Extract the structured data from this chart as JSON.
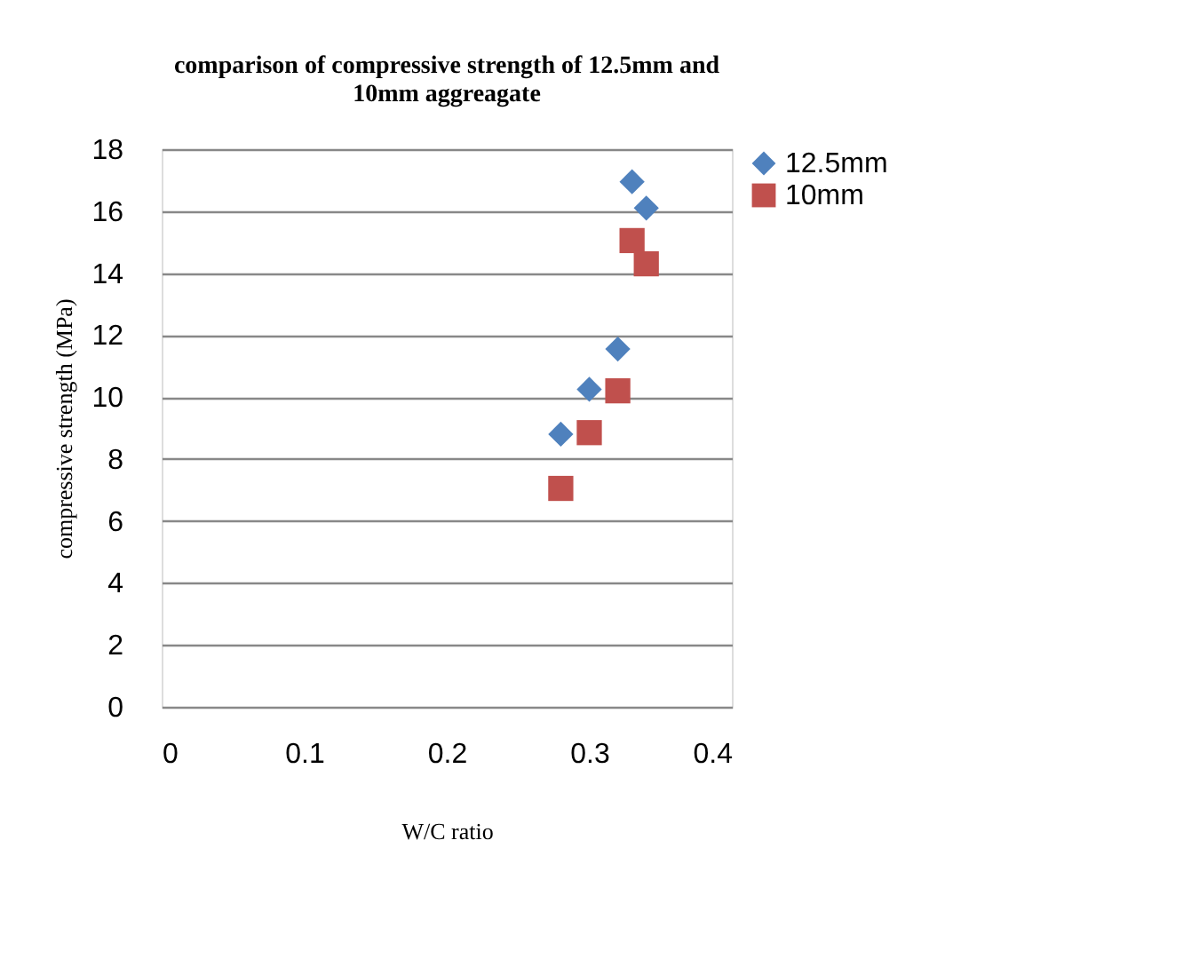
{
  "chart_data": {
    "type": "scatter",
    "title": "comparison of compressive strength of 12.5mm and\n10mm aggreagate",
    "xlabel": "W/C ratio",
    "ylabel": "compressive strength (MPa)",
    "series": [
      {
        "name": "12.5mm",
        "color": "#4f81bd",
        "marker": "diamond",
        "x": [
          0.28,
          0.3,
          0.32,
          0.33,
          0.34
        ],
        "values": [
          8.8,
          10.25,
          11.55,
          16.95,
          16.1
        ]
      },
      {
        "name": "10mm",
        "color": "#c0504d",
        "marker": "square",
        "x": [
          0.28,
          0.3,
          0.32,
          0.33,
          0.34
        ],
        "values": [
          7.05,
          8.85,
          10.2,
          15.05,
          14.3
        ]
      }
    ],
    "xlim": [
      0,
      0.4
    ],
    "xticks": [
      0,
      0.1,
      0.2,
      0.3,
      0.4
    ],
    "ylim": [
      0,
      18
    ],
    "yticks": [
      0,
      2,
      4,
      6,
      8,
      10,
      12,
      14,
      16,
      18
    ],
    "grid": "y",
    "legend": "right"
  }
}
